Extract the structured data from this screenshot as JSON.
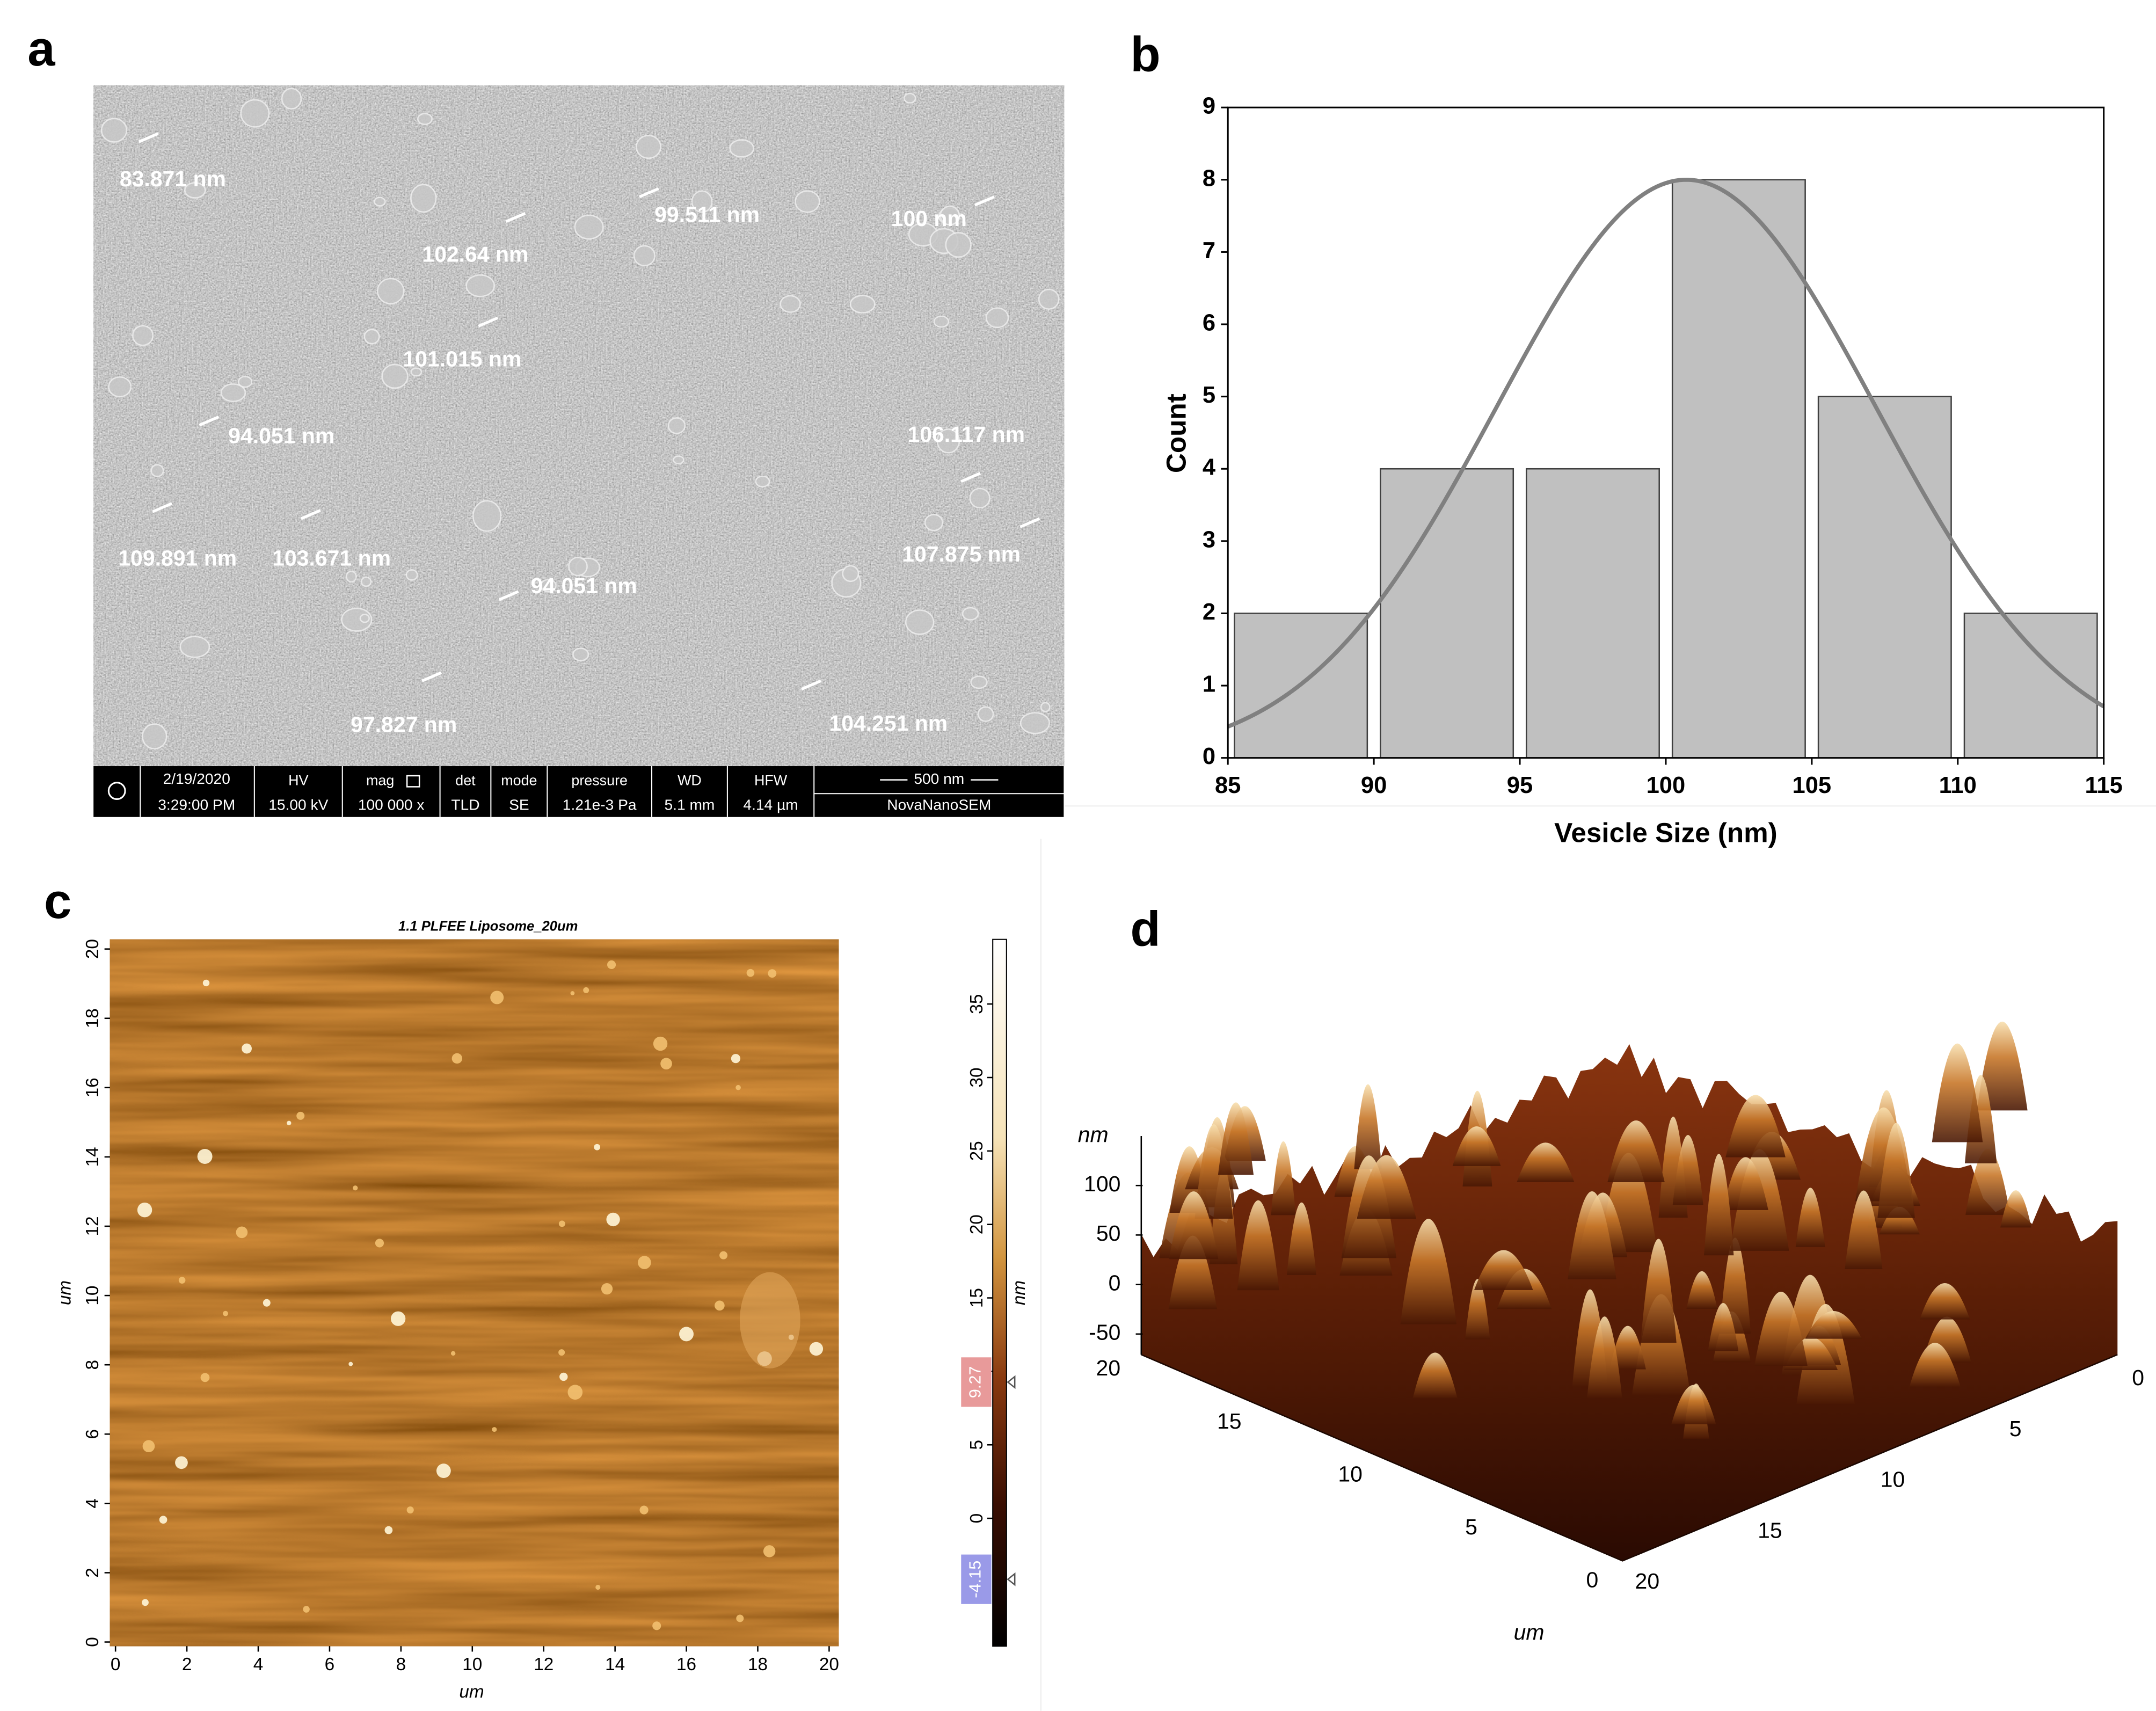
{
  "panels": {
    "a": {
      "label": "a",
      "annotations": [
        "83.871 nm",
        "102.64 nm",
        "99.511 nm",
        "100 nm",
        "101.015 nm",
        "94.051 nm",
        "106.117 nm",
        "109.891 nm",
        "103.671 nm",
        "107.875 nm",
        "94.051 nm",
        "97.827 nm",
        "104.251 nm"
      ],
      "info_bar": {
        "date": "2/19/2020",
        "time": "3:29:00 PM",
        "columns": [
          {
            "header": "HV",
            "value": "15.00 kV"
          },
          {
            "header": "mag",
            "value": "100 000 x"
          },
          {
            "header": "det",
            "value": "TLD"
          },
          {
            "header": "mode",
            "value": "SE"
          },
          {
            "header": "pressure",
            "value": "1.21e-3 Pa"
          },
          {
            "header": "WD",
            "value": "5.1 mm"
          },
          {
            "header": "HFW",
            "value": "4.14 µm"
          }
        ],
        "scale_bar": "500 nm",
        "instrument": "NovaNanoSEM"
      }
    },
    "c": {
      "label": "c",
      "title": "1.1 PLFEE Liposome_20um",
      "x_label": "um",
      "y_label": "um",
      "xticks": [
        0,
        2,
        4,
        6,
        8,
        10,
        12,
        14,
        16,
        18,
        20
      ],
      "yticks": [
        0,
        2,
        4,
        6,
        8,
        10,
        12,
        14,
        16,
        18,
        20
      ],
      "colorbar": {
        "unit": "nm",
        "lim": [
          -8.7,
          39.4
        ],
        "ticks": [
          0,
          5,
          10,
          15,
          20,
          25,
          30,
          35
        ],
        "markers": [
          9.27,
          -4.15
        ]
      }
    },
    "d": {
      "label": "d",
      "z_label": "nm",
      "zticks": [
        100,
        50,
        0,
        -50
      ],
      "axis_label": "um",
      "left_ticks": [
        20,
        15,
        10,
        5,
        0
      ],
      "right_ticks": [
        0,
        5,
        10,
        15,
        20
      ]
    }
  },
  "chart_data": {
    "type": "histogram",
    "label": "b",
    "x_label": "Vesicle Size (nm)",
    "y_label": "Count",
    "bins": [
      85,
      90,
      95,
      100,
      105,
      110,
      115
    ],
    "values": [
      2,
      4,
      4,
      8,
      5,
      2
    ],
    "color": "#c0c0c0",
    "edge_color": "#404040",
    "xlim": [
      85,
      115
    ],
    "xticks": [
      85,
      90,
      95,
      100,
      105,
      110,
      115
    ],
    "ylim": [
      0,
      9
    ],
    "yticks": [
      0,
      1,
      2,
      3,
      4,
      5,
      6,
      7,
      8,
      9
    ],
    "fit_curve": {
      "color": "#808080",
      "mean": 100.7,
      "sd": 6.5,
      "peak": 8
    }
  }
}
